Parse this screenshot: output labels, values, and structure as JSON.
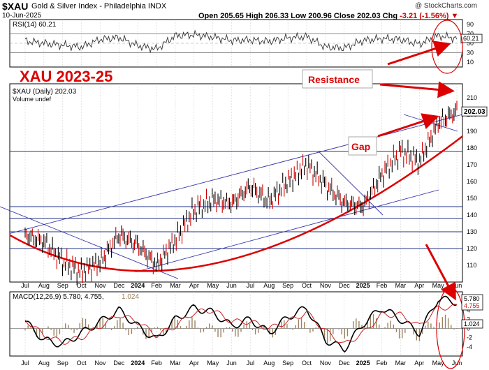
{
  "header": {
    "symbol": "$XAU",
    "index_name": "Gold & Silver Index - Philadelphia INDX",
    "date": "10-Jun-2025",
    "open_label": "Open",
    "open": "205.65",
    "high_label": "High",
    "high": "206.33",
    "low_label": "Low",
    "low": "200.96",
    "close_label": "Close",
    "close": "202.03",
    "chg_label": "Chg",
    "chg": "-3.21 (-1.56%)",
    "credit": "@ StockCharts.com"
  },
  "colors": {
    "annotation_red": "#dd0000",
    "trendline_blue": "#3333aa",
    "price_black": "#000000",
    "price_down_red": "#cc0000",
    "macd_hist": "#9a8060",
    "signal_red": "#cc2222"
  },
  "chart_data": [
    {
      "type": "line",
      "panel": "RSI",
      "title": "RSI(14) 60.21",
      "ylim": [
        0,
        100
      ],
      "y_ticks": [
        10,
        30,
        50,
        70,
        90
      ],
      "reference_lines": [
        30,
        70
      ],
      "last_value_label": "60.21",
      "series": [
        {
          "name": "RSI(14)",
          "x": [
            "Jul",
            "Aug",
            "Sep",
            "Oct",
            "Nov",
            "Dec",
            "2024",
            "Feb",
            "Mar",
            "Apr",
            "May",
            "Jun",
            "Jul",
            "Aug",
            "Sep",
            "Oct",
            "Nov",
            "Dec",
            "2025",
            "Feb",
            "Mar",
            "Apr",
            "May",
            "Jun"
          ],
          "values": [
            55,
            50,
            46,
            42,
            58,
            62,
            45,
            38,
            66,
            68,
            63,
            56,
            57,
            54,
            61,
            64,
            42,
            40,
            56,
            60,
            58,
            48,
            66,
            60
          ]
        }
      ]
    },
    {
      "type": "line",
      "panel": "price",
      "title": "$XAU (Daily) 202.03",
      "subtitle": "Volume undef",
      "ylim": [
        100,
        215
      ],
      "y_ticks": [
        110,
        120,
        130,
        140,
        150,
        160,
        170,
        180,
        190,
        200,
        210
      ],
      "last_value_label": "202.03",
      "x_labels": [
        "Jul",
        "Aug",
        "Sep",
        "Oct",
        "Nov",
        "Dec",
        "2024",
        "Feb",
        "Mar",
        "Apr",
        "May",
        "Jun",
        "Jul",
        "Aug",
        "Sep",
        "Oct",
        "Nov",
        "Dec",
        "2025",
        "Feb",
        "Mar",
        "Apr",
        "May",
        "Jun"
      ],
      "series": [
        {
          "name": "$XAU",
          "x": [
            "Jul",
            "Aug",
            "Sep",
            "Oct",
            "Nov",
            "Dec",
            "2024",
            "Feb",
            "Mar",
            "Apr",
            "May",
            "Jun",
            "Jul",
            "Aug",
            "Sep",
            "Oct",
            "Nov",
            "Dec",
            "2025",
            "Feb",
            "Mar",
            "Apr",
            "May",
            "Jun"
          ],
          "values": [
            128,
            124,
            112,
            106,
            112,
            128,
            122,
            110,
            125,
            143,
            149,
            147,
            157,
            148,
            160,
            170,
            158,
            147,
            145,
            164,
            178,
            172,
            195,
            202
          ]
        }
      ],
      "annotations": [
        {
          "type": "text",
          "text": "XAU 2023-25"
        },
        {
          "type": "text",
          "text": "Resistance"
        },
        {
          "type": "text",
          "text": "Gap"
        }
      ]
    },
    {
      "type": "line",
      "panel": "MACD",
      "title": "MACD(12,26,9) 5.780, 4.755, 1.024",
      "legend_values": [
        "5.780",
        "4.755",
        "1.024"
      ],
      "ylim": [
        -6,
        8
      ],
      "y_ticks": [
        -4,
        -2,
        0,
        2,
        4,
        6
      ],
      "x_labels": [
        "Jul",
        "Aug",
        "Sep",
        "Oct",
        "Nov",
        "Dec",
        "2024",
        "Feb",
        "Mar",
        "Apr",
        "May",
        "Jun",
        "Jul",
        "Aug",
        "Sep",
        "Oct",
        "Nov",
        "Dec",
        "2025",
        "Feb",
        "Mar",
        "Apr",
        "May",
        "Jun"
      ],
      "series": [
        {
          "name": "MACD",
          "x": [
            "Jul",
            "Aug",
            "Sep",
            "Oct",
            "Nov",
            "Dec",
            "2024",
            "Feb",
            "Mar",
            "Apr",
            "May",
            "Jun",
            "Jul",
            "Aug",
            "Sep",
            "Oct",
            "Nov",
            "Dec",
            "2025",
            "Feb",
            "Mar",
            "Apr",
            "May",
            "Jun"
          ],
          "values": [
            1.5,
            -2.5,
            -3.5,
            -1.0,
            1.5,
            4.0,
            0.5,
            -2.5,
            2.0,
            4.5,
            3.5,
            0.5,
            2.0,
            -1.0,
            2.5,
            4.5,
            -2.5,
            -4.5,
            1.0,
            4.5,
            2.0,
            -1.0,
            6.5,
            5.78
          ]
        },
        {
          "name": "Signal",
          "x": [
            "Jul",
            "Aug",
            "Sep",
            "Oct",
            "Nov",
            "Dec",
            "2024",
            "Feb",
            "Mar",
            "Apr",
            "May",
            "Jun",
            "Jul",
            "Aug",
            "Sep",
            "Oct",
            "Nov",
            "Dec",
            "2025",
            "Feb",
            "Mar",
            "Apr",
            "May",
            "Jun"
          ],
          "values": [
            2.0,
            -1.5,
            -3.0,
            -2.0,
            0.5,
            3.0,
            1.5,
            -1.5,
            0.5,
            3.5,
            4.0,
            1.5,
            1.5,
            0.0,
            1.5,
            3.5,
            -0.5,
            -3.5,
            -1.0,
            3.0,
            3.0,
            0.5,
            4.5,
            4.755
          ]
        }
      ]
    }
  ]
}
